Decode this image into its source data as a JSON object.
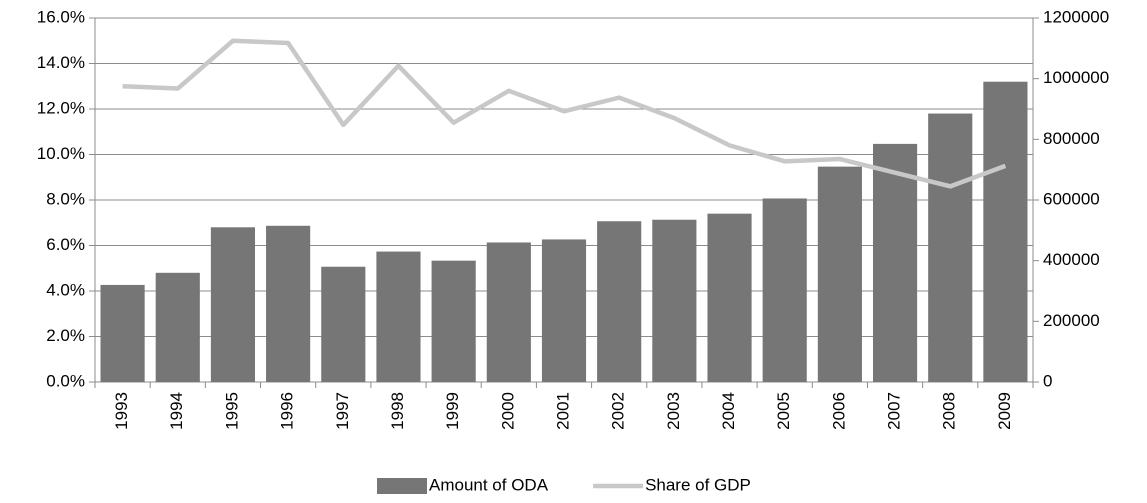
{
  "chart_data": {
    "type": "bar_line",
    "categories": [
      "1993",
      "1994",
      "1995",
      "1996",
      "1997",
      "1998",
      "1999",
      "2000",
      "2001",
      "2002",
      "2003",
      "2004",
      "2005",
      "2006",
      "2007",
      "2008",
      "2009"
    ],
    "series": [
      {
        "name": "Amount of ODA",
        "type": "bar",
        "axis": "y2",
        "color": "#767676",
        "values": [
          320000,
          360000,
          510000,
          515000,
          380000,
          430000,
          400000,
          460000,
          470000,
          530000,
          535000,
          555000,
          605000,
          710000,
          785000,
          885000,
          990000
        ]
      },
      {
        "name": "Share of GDP",
        "type": "line",
        "axis": "y",
        "color": "#c8c8c8",
        "values": [
          13.0,
          12.9,
          15.0,
          14.9,
          11.3,
          13.9,
          11.4,
          12.8,
          11.9,
          12.5,
          11.6,
          10.4,
          9.7,
          9.8,
          9.2,
          8.6,
          9.5
        ]
      }
    ],
    "ylim": [
      0,
      16
    ],
    "yticks": [
      {
        "value": 0,
        "label": "0.0%"
      },
      {
        "value": 2,
        "label": "2.0%"
      },
      {
        "value": 4,
        "label": "4.0%"
      },
      {
        "value": 6,
        "label": "6.0%"
      },
      {
        "value": 8,
        "label": "8.0%"
      },
      {
        "value": 10,
        "label": "10.0%"
      },
      {
        "value": 12,
        "label": "12.0%"
      },
      {
        "value": 14,
        "label": "14.0%"
      },
      {
        "value": 16,
        "label": "16.0%"
      }
    ],
    "y2lim": [
      0,
      1200000
    ],
    "y2ticks": [
      0,
      200000,
      400000,
      600000,
      800000,
      1000000,
      1200000
    ],
    "grid": true,
    "legend": "bottom"
  }
}
